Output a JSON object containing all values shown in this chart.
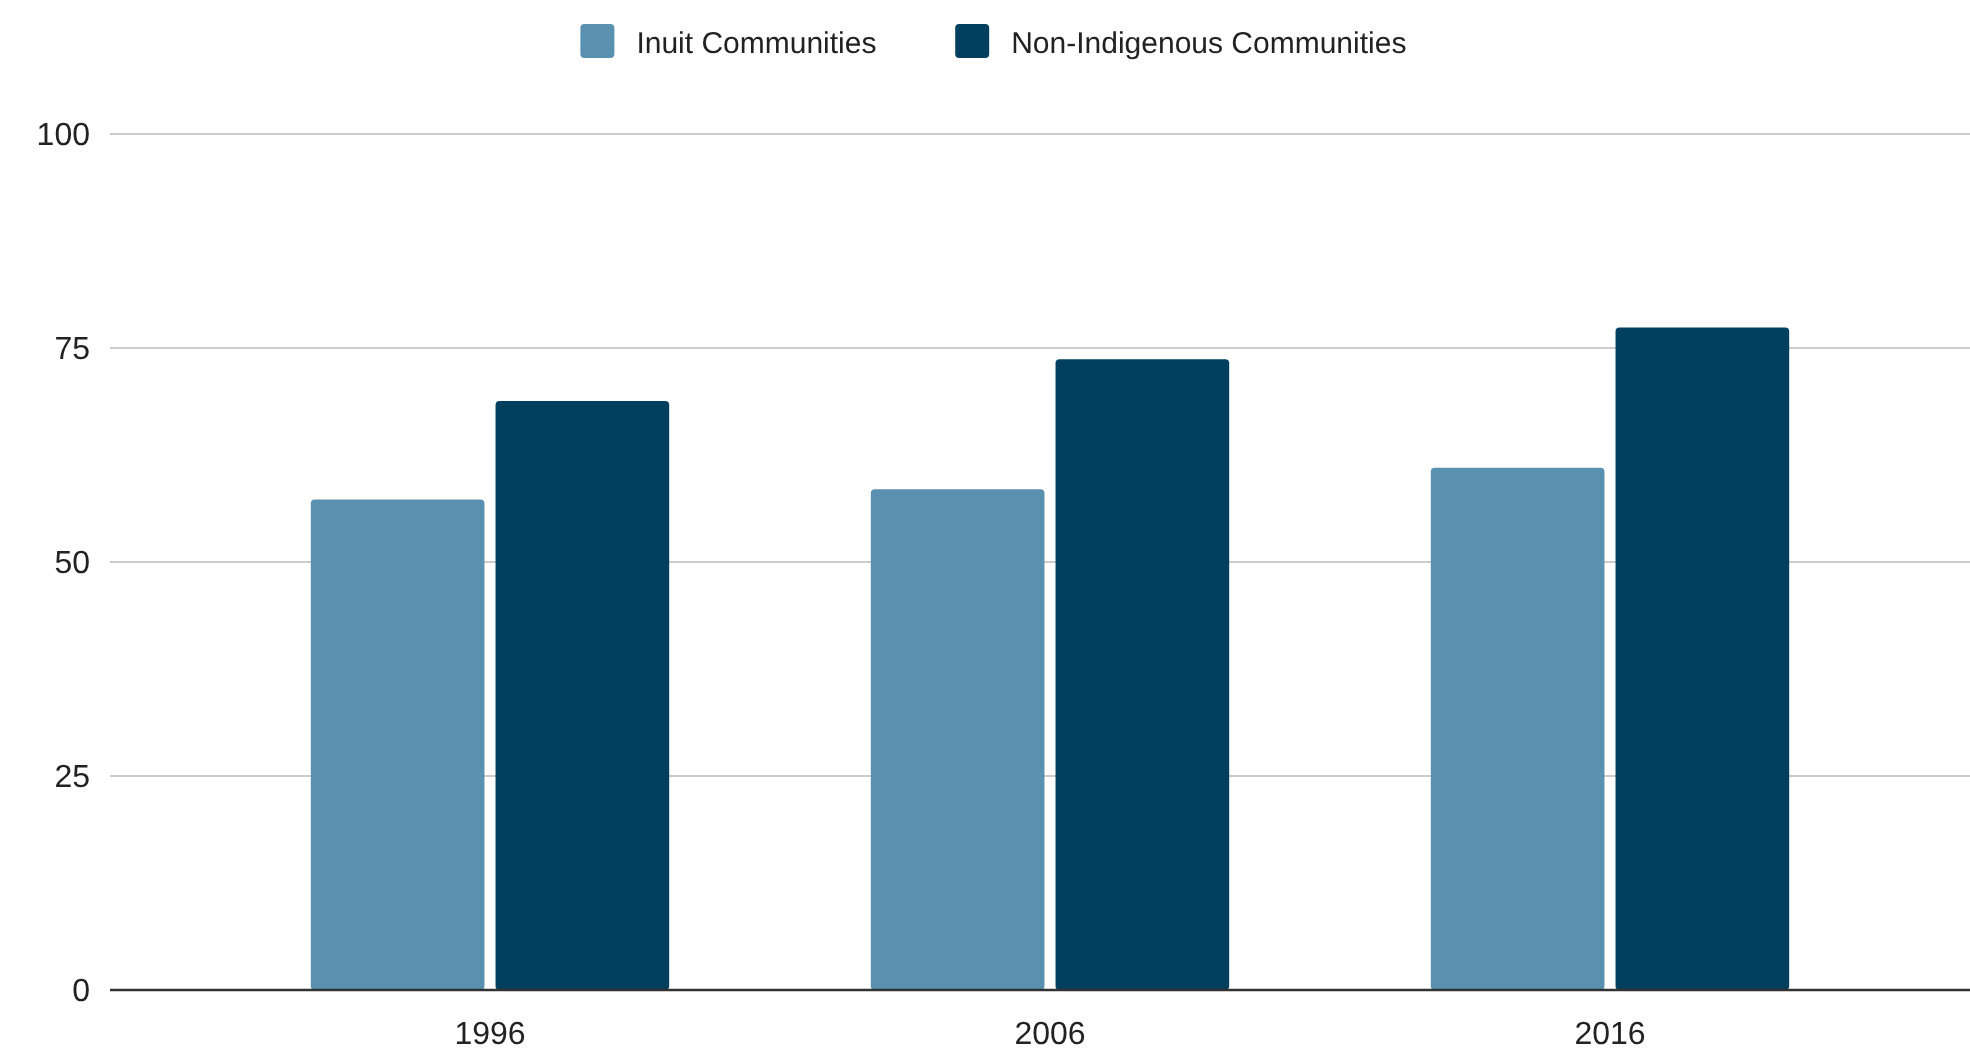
{
  "chart_data": {
    "type": "bar",
    "categories": [
      "1996",
      "2006",
      "2016"
    ],
    "series": [
      {
        "name": "Inuit Communities",
        "color": "#5b91b0",
        "values": [
          57.3,
          58.5,
          61
        ]
      },
      {
        "name": "Non-Indigenous Communities",
        "color": "#00405e",
        "values": [
          68.8,
          73.7,
          77.4
        ]
      }
    ],
    "ylim": [
      0,
      100
    ],
    "yticks": [
      0,
      25,
      50,
      75,
      100
    ],
    "grid": "y",
    "legend": "top"
  }
}
